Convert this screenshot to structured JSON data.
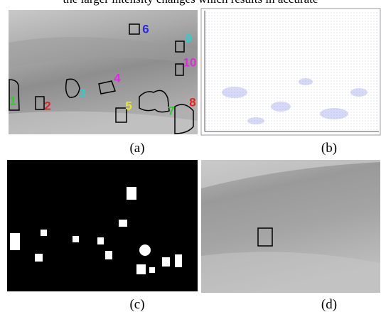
{
  "header": {
    "text": "the larger intensity changes which results in accurate"
  },
  "panels": [
    {
      "caption": "(a)",
      "labels": [
        "1",
        "2",
        "3",
        "4",
        "5",
        "6",
        "7",
        "8",
        "9",
        "10"
      ]
    },
    {
      "caption": "(b)"
    },
    {
      "caption": "(c)"
    },
    {
      "caption": "(d)"
    }
  ]
}
